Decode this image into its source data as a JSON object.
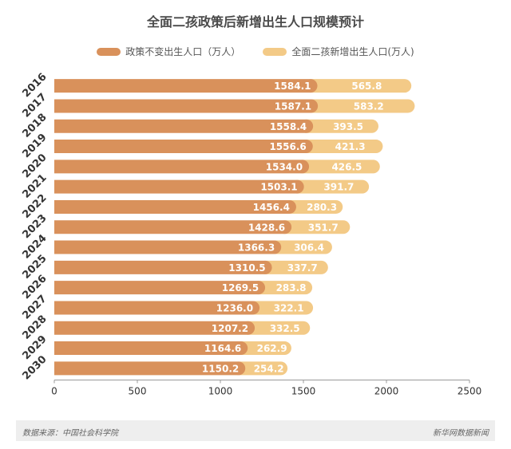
{
  "chart_data": {
    "type": "bar",
    "orientation": "horizontal",
    "stacked": true,
    "title": "全面二孩政策后新增出生人口规模预计",
    "categories": [
      "2016",
      "2017",
      "2018",
      "2019",
      "2020",
      "2021",
      "2022",
      "2023",
      "2024",
      "2025",
      "2026",
      "2027",
      "2028",
      "2029",
      "2030"
    ],
    "series": [
      {
        "name": "政策不变出生人口（万人）",
        "color": "#d9915b",
        "values": [
          1584.1,
          1587.1,
          1558.4,
          1556.6,
          1534.0,
          1503.1,
          1456.4,
          1428.6,
          1366.3,
          1310.5,
          1269.5,
          1236.0,
          1207.2,
          1164.6,
          1150.2
        ]
      },
      {
        "name": "全面二孩新增出生人口(万人)",
        "color": "#f3ca87",
        "values": [
          565.8,
          583.2,
          393.5,
          421.3,
          426.5,
          391.7,
          280.3,
          351.7,
          306.4,
          337.7,
          283.8,
          322.1,
          332.5,
          262.9,
          254.2
        ]
      }
    ],
    "xlim": [
      0,
      2500
    ],
    "xticks": [
      0,
      500,
      1000,
      1500,
      2000,
      2500
    ],
    "grid": false,
    "legend_position": "top"
  },
  "footer": {
    "source": "数据来源：中国社会科学院",
    "brand": "新华网数据新闻"
  }
}
